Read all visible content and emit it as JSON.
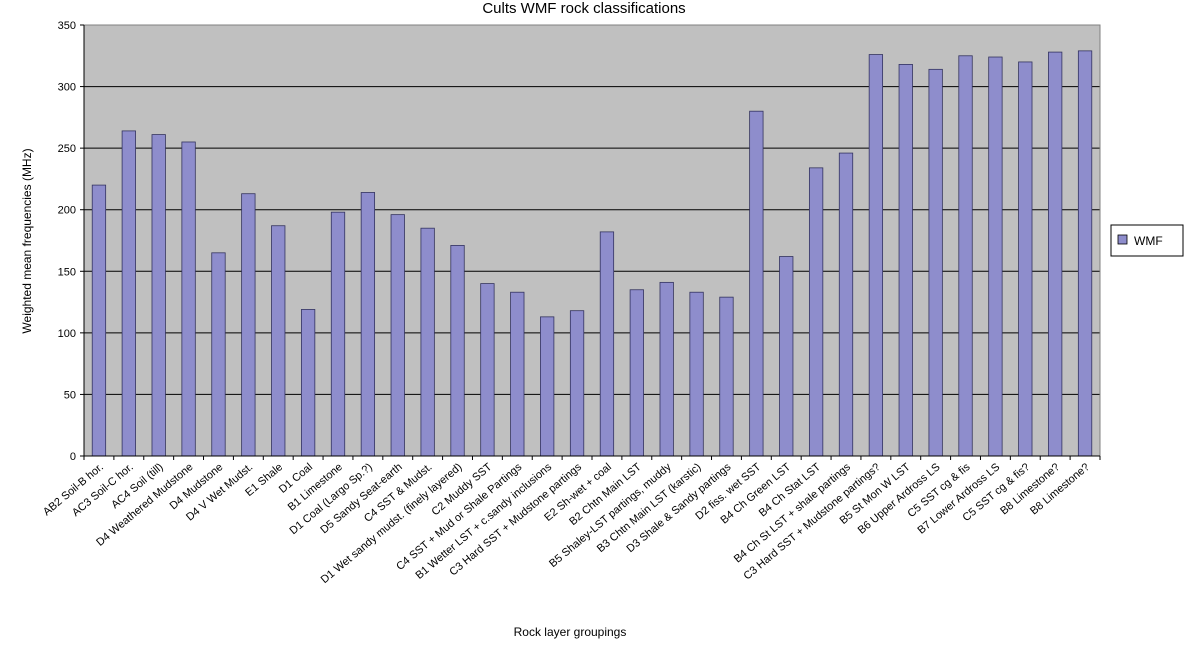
{
  "chart_data": {
    "type": "bar",
    "title": "Cults WMF rock classifications",
    "xlabel": "Rock layer groupings",
    "ylabel": "Weighted mean frequencies (MHz)",
    "ylim": [
      0,
      350
    ],
    "yticks": [
      0,
      50,
      100,
      150,
      200,
      250,
      300,
      350
    ],
    "grid": true,
    "legend_position": "right",
    "colors": {
      "bar": "#8e8dcc",
      "bar_stroke": "#33335f",
      "plot_bg": "#c0c0c0",
      "grid": "#000000"
    },
    "categories": [
      "AB2  Soil-B hor.",
      "AC3  Soil-C hor.",
      "AC4  Soil (till)",
      "D4  Weathered Mudstone",
      "D4  Mudstone",
      "D4  V Wet Mudst.",
      "E1 Shale",
      "D1 Coal",
      "B1 Limestone",
      "D1 Coal (Largo Sp.?)",
      "D5 Sandy Seat-earth",
      "C4 SST & Mudst.",
      "D1 Wet sandy mudst. (finely layered)",
      "C2  Muddy SST",
      "C4 SST + Mud or Shale Partings",
      "B1  Wetter LST + c.sandy inclusions",
      "C3  Hard SST + Mudstone partings",
      "E2  Sh-wet + coal",
      "B2  Chtn Main LST",
      "B5  Shaley-LST partings, muddy",
      "B3  Chtn Main LST (karstic)",
      "D3   Shale & Sandy partings",
      "D2  fiss.  wet SST",
      "B4  Ch Green LST",
      "B4  Ch Stat LST",
      "B4  Ch St LST + shale partings",
      "C3 Hard SST + Mudstone partings?",
      "B5  St Mon W LST",
      "B6  Upper Ardross LS",
      "C5  SST cg & fis",
      "B7  Lower Ardross LS",
      "C5  SST cg & fis?",
      "B8 Limestone?",
      "B8 Limestone?"
    ],
    "series": [
      {
        "name": "WMF",
        "values": [
          220,
          264,
          261,
          255,
          165,
          213,
          187,
          119,
          198,
          214,
          196,
          185,
          171,
          140,
          133,
          113,
          118,
          182,
          135,
          141,
          133,
          129,
          280,
          162,
          234,
          246,
          326,
          318,
          314,
          325,
          324,
          320,
          328,
          329
        ]
      }
    ]
  }
}
